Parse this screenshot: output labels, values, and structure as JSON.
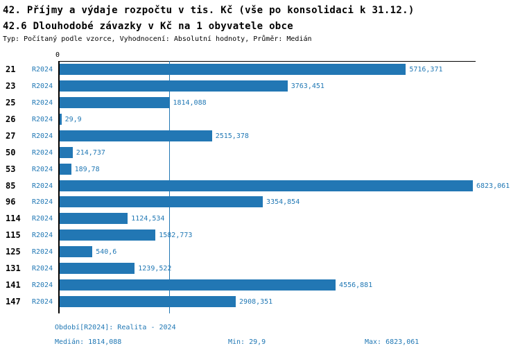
{
  "header": {
    "title_line1": "42. Příjmy a výdaje rozpočtu v tis. Kč (vše po konsolidaci k 31.12.)",
    "title_line2": "42.6 Dlouhodobé závazky v Kč na 1 obyvatele obce",
    "subtitle": "Typ: Počítaný podle vzorce, Vyhodnocení: Absolutní hodnoty, Průměr: Medián"
  },
  "chart_data": {
    "type": "bar",
    "orientation": "horizontal",
    "title": "42.6 Dlouhodobé závazky v Kč na 1 obyvatele obce",
    "series_label": "R2024",
    "categories": [
      "21",
      "23",
      "25",
      "26",
      "27",
      "50",
      "53",
      "85",
      "96",
      "114",
      "115",
      "125",
      "131",
      "141",
      "147"
    ],
    "values": [
      5716.371,
      3763.451,
      1814.088,
      29.9,
      2515.378,
      214.737,
      189.78,
      6823.061,
      3354.854,
      1124.534,
      1582.773,
      540.6,
      1239.522,
      4556.881,
      2908.351
    ],
    "value_labels": [
      "5716,371",
      "3763,451",
      "1814,088",
      "29,9",
      "2515,378",
      "214,737",
      "189,78",
      "6823,061",
      "3354,854",
      "1124,534",
      "1582,773",
      "540,6",
      "1239,522",
      "4556,881",
      "2908,351"
    ],
    "x_axis": {
      "zero_label": "0",
      "min": 0,
      "max": 6823.061
    },
    "median_value": 1814.088,
    "grid": false,
    "legend_position": "none",
    "bar_color": "#2277b4",
    "median_line_color": "#2177b4",
    "label_color": "#1f77b4"
  },
  "footer": {
    "period": "Období[R2024]: Realita - 2024",
    "median": "Medián: 1814,088",
    "min": "Min: 29,9",
    "max": "Max: 6823,061"
  }
}
